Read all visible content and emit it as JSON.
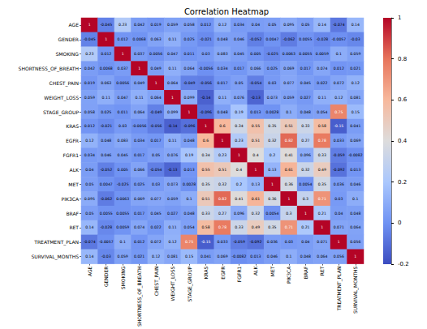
{
  "chart_data": {
    "type": "heatmap",
    "title": "Correlation Heatmap",
    "categories": [
      "AGE",
      "GENDER",
      "SMOKING",
      "SHORTNESS_OF_BREATH",
      "CHEST_PAIN",
      "WEIGHT_LOSS",
      "STAGE_GROUP",
      "KRAS",
      "EGFR",
      "FGFR1",
      "ALK",
      "MET",
      "PIK3CA",
      "BRAF",
      "RET",
      "TREATMENT_PLAN",
      "SURVIVAL_MONTHS"
    ],
    "values": [
      [
        1,
        -0.045,
        0.23,
        0.042,
        0.019,
        0.059,
        0.058,
        0.012,
        0.12,
        0.034,
        0.04,
        0.05,
        0.095,
        0.05,
        0.14,
        -0.074,
        0.14
      ],
      [
        -0.045,
        1,
        0.012,
        0.0068,
        0.063,
        0.11,
        0.025,
        -0.021,
        0.048,
        0.046,
        -0.052,
        0.0047,
        -0.062,
        0.0055,
        -0.028,
        -0.0057,
        -0.03
      ],
      [
        0.23,
        0.012,
        1,
        0.037,
        0.0056,
        0.047,
        0.011,
        0.03,
        0.083,
        0.045,
        0.005,
        -0.025,
        0.0063,
        0.0055,
        0.0059,
        0.1,
        0.059
      ],
      [
        0.042,
        0.0068,
        0.037,
        1,
        0.049,
        0.11,
        0.064,
        -0.0056,
        0.034,
        0.017,
        0.066,
        0.025,
        0.069,
        0.017,
        0.074,
        0.012,
        0.021
      ],
      [
        0.019,
        0.063,
        0.0056,
        0.049,
        1,
        0.064,
        -0.049,
        -0.056,
        0.017,
        0.05,
        -0.054,
        0.03,
        0.077,
        0.045,
        0.022,
        0.072,
        0.12
      ],
      [
        0.059,
        0.11,
        0.047,
        0.11,
        0.064,
        1,
        0.099,
        -0.14,
        0.11,
        0.076,
        -0.13,
        0.073,
        0.059,
        0.027,
        0.11,
        0.12,
        0.081
      ],
      [
        0.058,
        0.025,
        0.011,
        0.064,
        -0.049,
        0.099,
        1,
        -0.096,
        0.048,
        0.19,
        0.013,
        0.0028,
        0.1,
        0.048,
        0.054,
        0.75,
        0.15
      ],
      [
        0.012,
        -0.021,
        0.03,
        -0.0056,
        -0.056,
        -0.14,
        -0.096,
        1,
        0.6,
        0.34,
        0.55,
        0.35,
        0.51,
        0.33,
        0.58,
        -0.15,
        0.041
      ],
      [
        0.12,
        0.048,
        0.083,
        0.034,
        0.017,
        0.11,
        0.048,
        0.6,
        1,
        0.23,
        0.51,
        0.32,
        0.82,
        0.27,
        0.78,
        0.033,
        0.069
      ],
      [
        0.034,
        0.046,
        0.045,
        0.017,
        0.05,
        0.076,
        0.19,
        0.34,
        0.23,
        1,
        0.4,
        0.2,
        0.41,
        0.096,
        0.33,
        -0.059,
        -0.0082
      ],
      [
        0.04,
        -0.052,
        0.005,
        0.066,
        -0.054,
        -0.13,
        0.013,
        0.55,
        0.51,
        0.4,
        1,
        0.13,
        0.61,
        0.32,
        0.49,
        -0.092,
        0.013
      ],
      [
        0.05,
        0.0047,
        -0.025,
        0.025,
        0.03,
        0.073,
        0.0028,
        0.35,
        0.32,
        0.2,
        0.13,
        1,
        0.36,
        0.0054,
        0.35,
        0.036,
        0.046
      ],
      [
        0.095,
        -0.062,
        0.0063,
        0.069,
        0.077,
        0.059,
        0.1,
        0.51,
        0.82,
        0.41,
        0.61,
        0.36,
        1,
        0.3,
        0.71,
        0.03,
        0.1
      ],
      [
        0.05,
        0.0055,
        0.0055,
        0.017,
        0.045,
        0.027,
        0.048,
        0.33,
        0.27,
        0.096,
        0.32,
        0.0054,
        0.3,
        1,
        0.21,
        0.04,
        0.048
      ],
      [
        0.14,
        -0.028,
        0.0059,
        0.074,
        0.022,
        0.11,
        0.054,
        0.58,
        0.78,
        0.33,
        0.49,
        0.35,
        0.71,
        0.21,
        1,
        0.071,
        0.064
      ],
      [
        -0.074,
        -0.0057,
        0.1,
        0.012,
        0.072,
        0.12,
        0.75,
        -0.15,
        0.033,
        -0.059,
        -0.092,
        0.036,
        0.03,
        0.04,
        0.071,
        1,
        0.056
      ],
      [
        0.14,
        -0.03,
        0.059,
        0.021,
        0.12,
        0.081,
        0.15,
        0.041,
        0.069,
        -0.0082,
        0.013,
        0.046,
        0.1,
        0.048,
        0.064,
        0.056,
        1
      ]
    ],
    "colorbar_lim": [
      -0.2,
      1
    ],
    "colorbar_ticks": [
      -0.2,
      0,
      0.2,
      0.4,
      0.6,
      0.8,
      1
    ],
    "data_labels": true
  }
}
